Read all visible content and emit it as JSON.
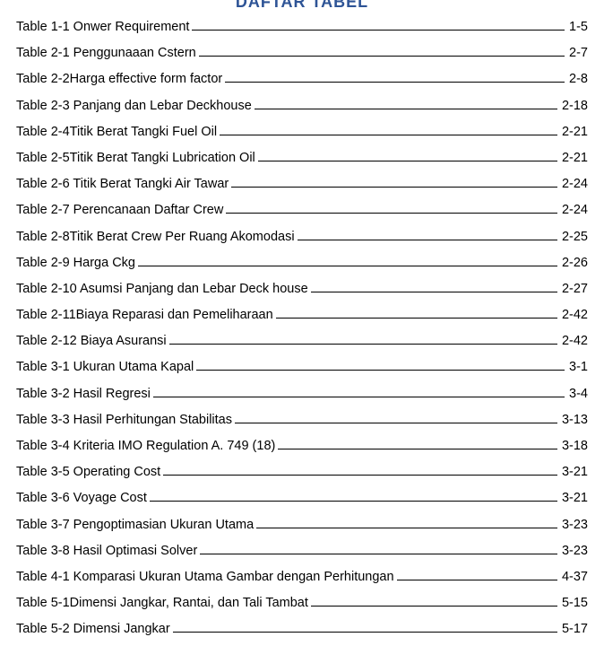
{
  "header": {
    "title": "DAFTAR TABEL"
  },
  "toc": {
    "items": [
      {
        "label": "Table 1-1 Onwer Requirement",
        "page": "1-5"
      },
      {
        "label": "Table 2-1 Penggunaaan Cstern",
        "page": "2-7"
      },
      {
        "label": "Table 2-2Harga effective form factor",
        "page": "2-8"
      },
      {
        "label": "Table 2-3 Panjang dan Lebar Deckhouse",
        "page": "2-18"
      },
      {
        "label": "Table 2-4Titik Berat Tangki Fuel Oil",
        "page": "2-21"
      },
      {
        "label": "Table 2-5Titik Berat Tangki Lubrication Oil",
        "page": "2-21"
      },
      {
        "label": "Table 2-6 Titik Berat Tangki Air Tawar",
        "page": "2-24"
      },
      {
        "label": "Table 2-7 Perencanaan Daftar Crew",
        "page": "2-24"
      },
      {
        "label": "Table 2-8Titik Berat Crew Per Ruang Akomodasi",
        "page": "2-25"
      },
      {
        "label": "Table 2-9 Harga Ckg",
        "page": "2-26"
      },
      {
        "label": "Table 2-10 Asumsi Panjang dan Lebar Deck house",
        "page": "2-27"
      },
      {
        "label": "Table 2-11Biaya Reparasi dan Pemeliharaan",
        "page": "2-42"
      },
      {
        "label": "Table 2-12 Biaya Asuransi",
        "page": "2-42"
      },
      {
        "label": "Table 3-1 Ukuran Utama Kapal",
        "page": "3-1"
      },
      {
        "label": "Table 3-2 Hasil Regresi",
        "page": "3-4"
      },
      {
        "label": "Table 3-3 Hasil Perhitungan Stabilitas",
        "page": "3-13"
      },
      {
        "label": "Table 3-4 Kriteria IMO Regulation A. 749 (18)",
        "page": "3-18"
      },
      {
        "label": "Table 3-5 Operating Cost",
        "page": "3-21"
      },
      {
        "label": "Table 3-6 Voyage Cost",
        "page": "3-21"
      },
      {
        "label": "Table 3-7 Pengoptimasian Ukuran Utama",
        "page": "3-23"
      },
      {
        "label": "Table 3-8 Hasil Optimasi Solver",
        "page": "3-23"
      },
      {
        "label": "Table 4-1 Komparasi Ukuran Utama Gambar dengan Perhitungan",
        "page": "4-37"
      },
      {
        "label": "Table 5-1Dimensi Jangkar, Rantai, dan Tali Tambat",
        "page": "5-15"
      },
      {
        "label": "Table 5-2 Dimensi Jangkar",
        "page": "5-17"
      }
    ]
  },
  "style": {
    "body_bg": "#ffffff",
    "text_color": "#000000",
    "header_color": "#2e5496",
    "font_family": "Arial",
    "body_fontsize": 14.5,
    "header_fontsize": 18,
    "line_spacing": 13.2,
    "leader_style": "underline"
  }
}
